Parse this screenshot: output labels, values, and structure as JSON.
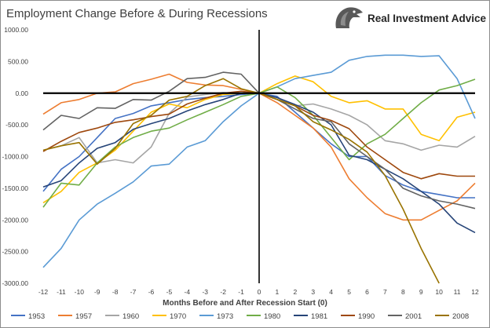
{
  "header": {
    "title": "Employment Change Before & During Recessions",
    "brand": "Real Investment Advice",
    "brand_logo": "eagle-head-logo"
  },
  "chart_data": {
    "type": "line",
    "title": "Employment Change Before & During Recessions",
    "xlabel": "Months Before and After Recession Start (0)",
    "ylabel": "",
    "x": [
      -12,
      -11,
      -10,
      -9,
      -8,
      -7,
      -6,
      -5,
      -4,
      -3,
      -2,
      -1,
      0,
      1,
      2,
      3,
      4,
      5,
      6,
      7,
      8,
      9,
      10,
      11,
      12
    ],
    "xlim": [
      -12,
      12
    ],
    "ylim": [
      -3000,
      1000
    ],
    "yticks": [
      1000,
      500,
      0,
      -500,
      -1000,
      -1500,
      -2000,
      -2500,
      -3000
    ],
    "ytick_labels": [
      "1000.00",
      "500.00",
      "0.00",
      "-500.00",
      "-1000.00",
      "-1500.00",
      "-2000.00",
      "-2500.00",
      "-3000.00"
    ],
    "legend_position": "bottom",
    "grid": false,
    "series": [
      {
        "name": "1953",
        "color": "#4472c4",
        "values": [
          -1550,
          -1200,
          -1000,
          -700,
          -400,
          -320,
          -200,
          -150,
          -100,
          -70,
          -50,
          -20,
          0,
          -50,
          -300,
          -550,
          -800,
          -1000,
          -1000,
          -1300,
          -1450,
          -1550,
          -1600,
          -1650,
          -1650
        ]
      },
      {
        "name": "1957",
        "color": "#ed7d31",
        "values": [
          -330,
          -150,
          -100,
          0,
          20,
          150,
          220,
          300,
          170,
          130,
          120,
          60,
          0,
          -150,
          -350,
          -550,
          -850,
          -1350,
          -1650,
          -1900,
          -2000,
          -2000,
          -1850,
          -1700,
          -1420
        ]
      },
      {
        "name": "1960",
        "color": "#a5a5a5",
        "values": [
          -900,
          -830,
          -700,
          -1100,
          -1050,
          -1100,
          -850,
          -320,
          -60,
          -20,
          10,
          0,
          0,
          -70,
          -200,
          -170,
          -250,
          -350,
          -500,
          -750,
          -800,
          -900,
          -820,
          -850,
          -680
        ]
      },
      {
        "name": "1970",
        "color": "#ffc000",
        "values": [
          -1730,
          -1550,
          -1250,
          -1100,
          -900,
          -600,
          -300,
          -170,
          -230,
          -100,
          -20,
          0,
          0,
          150,
          270,
          180,
          -50,
          -150,
          -120,
          -250,
          -250,
          -650,
          -750,
          -380,
          -300
        ]
      },
      {
        "name": "1973",
        "color": "#5b9bd5",
        "values": [
          -2750,
          -2450,
          -2000,
          -1750,
          -1580,
          -1400,
          -1150,
          -1120,
          -850,
          -750,
          -450,
          -200,
          0,
          100,
          230,
          280,
          330,
          520,
          580,
          600,
          600,
          580,
          590,
          230,
          -400
        ]
      },
      {
        "name": "1980",
        "color": "#70ad47",
        "values": [
          -1800,
          -1420,
          -1450,
          -1100,
          -850,
          -700,
          -600,
          -550,
          -420,
          -300,
          -180,
          -50,
          0,
          100,
          -70,
          -350,
          -700,
          -1050,
          -800,
          -650,
          -400,
          -150,
          50,
          120,
          220
        ]
      },
      {
        "name": "1981",
        "color": "#264478",
        "values": [
          -1480,
          -1380,
          -1100,
          -870,
          -780,
          -570,
          -480,
          -400,
          -280,
          -180,
          -100,
          0,
          0,
          -70,
          -180,
          -300,
          -500,
          -980,
          -1050,
          -1200,
          -1350,
          -1550,
          -1750,
          -2050,
          -2200
        ]
      },
      {
        "name": "1990",
        "color": "#9e480e",
        "values": [
          -920,
          -760,
          -620,
          -550,
          -460,
          -420,
          -370,
          -330,
          -170,
          -80,
          0,
          30,
          0,
          -100,
          -200,
          -350,
          -430,
          -560,
          -850,
          -1050,
          -1250,
          -1350,
          -1270,
          -1310,
          -1310
        ]
      },
      {
        "name": "2001",
        "color": "#636363",
        "values": [
          -580,
          -350,
          -400,
          -230,
          -240,
          -100,
          -110,
          30,
          230,
          250,
          330,
          300,
          0,
          -100,
          -250,
          -400,
          -450,
          -800,
          -1000,
          -1200,
          -1500,
          -1620,
          -1700,
          -1750,
          -1820
        ]
      },
      {
        "name": "2008",
        "color": "#997300",
        "values": [
          -900,
          -830,
          -780,
          -1120,
          -870,
          -480,
          -350,
          -110,
          -50,
          120,
          230,
          70,
          0,
          -100,
          -200,
          -450,
          -580,
          -730,
          -930,
          -1300,
          -1830,
          -2450,
          -3000,
          null,
          null
        ]
      }
    ]
  }
}
